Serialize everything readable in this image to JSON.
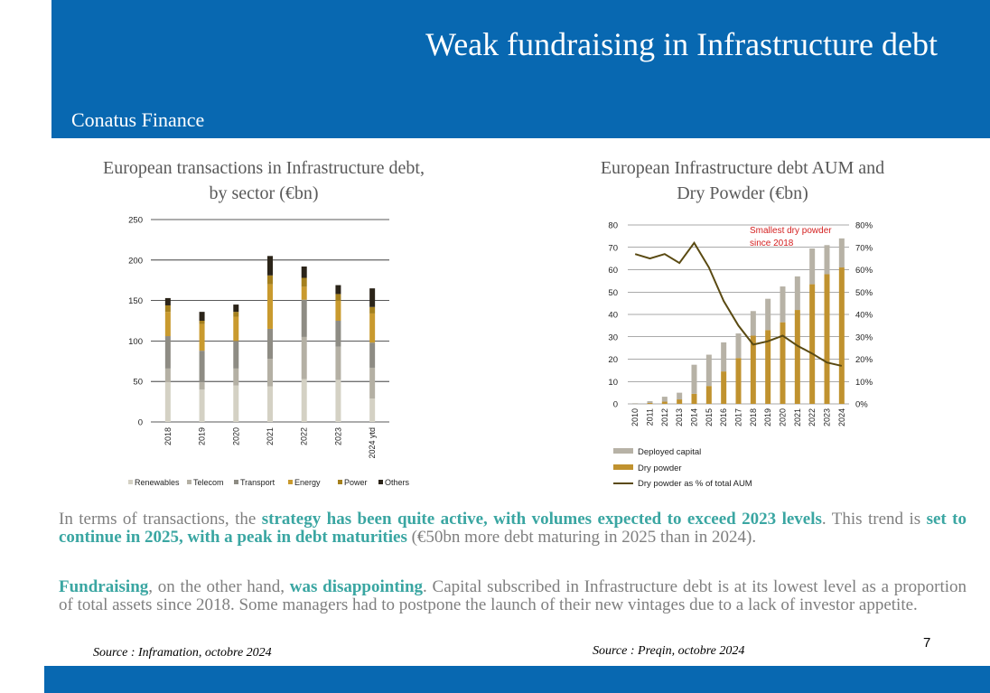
{
  "header": {
    "title": "Weak fundraising in Infrastructure debt",
    "company": "Conatus Finance"
  },
  "colors": {
    "header_bg": "#0868b1",
    "accent_text": "#3aa6a2"
  },
  "chart_data": [
    {
      "type": "bar",
      "stacked": true,
      "title_lines": [
        "European transactions in Infrastructure debt,",
        "by sector (€bn)"
      ],
      "categories": [
        "2018",
        "2019",
        "2020",
        "2021",
        "2022",
        "2023",
        "2024 ytd"
      ],
      "ylim": [
        0,
        250
      ],
      "yticks": [
        0,
        50,
        100,
        150,
        200,
        250
      ],
      "grid": true,
      "legend_position": "bottom",
      "series": [
        {
          "name": "Renewables",
          "color": "#d4d1c4",
          "values": [
            49,
            40,
            45,
            44,
            53,
            52,
            29
          ]
        },
        {
          "name": "Telecom",
          "color": "#b4b0a4",
          "values": [
            17,
            9,
            21,
            34,
            52,
            41,
            38
          ]
        },
        {
          "name": "Transport",
          "color": "#8e8c84",
          "values": [
            40,
            39,
            34,
            37,
            46,
            32,
            31
          ]
        },
        {
          "name": "Energy",
          "color": "#c99a2e",
          "values": [
            30,
            33,
            30,
            55,
            16,
            25,
            36
          ]
        },
        {
          "name": "Power",
          "color": "#a5801d",
          "values": [
            8,
            4,
            6,
            11,
            11,
            8,
            8
          ]
        },
        {
          "name": "Others",
          "color": "#2b2419",
          "values": [
            9,
            11,
            9,
            24,
            14,
            11,
            23
          ]
        }
      ]
    },
    {
      "type": "bar",
      "stacked": true,
      "title_lines": [
        "European Infrastructure debt AUM and",
        "Dry Powder (€bn)"
      ],
      "categories": [
        "2010",
        "2011",
        "2012",
        "2013",
        "2014",
        "2015",
        "2016",
        "2017",
        "2018",
        "2019",
        "2020",
        "2021",
        "2022",
        "2023",
        "2024"
      ],
      "ylim": [
        0,
        80
      ],
      "yticks": [
        0,
        10,
        20,
        30,
        40,
        50,
        60,
        70,
        80
      ],
      "y2lim": [
        0,
        80
      ],
      "y2ticks": [
        "0%",
        "10%",
        "20%",
        "30%",
        "40%",
        "50%",
        "60%",
        "70%",
        "80%"
      ],
      "grid": true,
      "legend_position": "bottom",
      "series": [
        {
          "name": "Deployed capital",
          "color": "#b7b2a6",
          "values": [
            0.3,
            0.8,
            2.2,
            3,
            13,
            14,
            13,
            11,
            11,
            14,
            16,
            15,
            16,
            13,
            13
          ]
        },
        {
          "name": "Dry powder",
          "color": "#c0922f",
          "values": [
            0,
            0.4,
            1,
            2,
            4.5,
            8,
            14.5,
            20.5,
            30.5,
            33,
            36.5,
            42,
            53.5,
            58,
            61
          ]
        }
      ],
      "line_series": {
        "name": "Dry powder as % of total AUM",
        "color": "#5a4a12",
        "axis": "right",
        "values": [
          67,
          65,
          67,
          63,
          72,
          61,
          46,
          35,
          26.5,
          28,
          30.5,
          26,
          22.5,
          18.5,
          17
        ]
      },
      "annotation": {
        "lines": [
          "Smallest dry powder",
          "since 2018"
        ],
        "color": "#d42020"
      }
    }
  ],
  "text": {
    "p1": [
      {
        "t": "In terms of transactions, the ",
        "h": false
      },
      {
        "t": "strategy has been quite active, with volumes expected to exceed 2023 levels",
        "h": true
      },
      {
        "t": ". This trend is ",
        "h": false
      },
      {
        "t": "set to continue in 2025, with a peak in debt maturities",
        "h": true
      },
      {
        "t": " (€50bn more debt maturing in 2025 than in 2024).",
        "h": false
      }
    ],
    "p2": [
      {
        "t": "Fundraising",
        "h": true
      },
      {
        "t": ", on the other hand, ",
        "h": false
      },
      {
        "t": "was disappointing",
        "h": true
      },
      {
        "t": ". Capital subscribed in Infrastructure debt is at its lowest level as a proportion of total assets since 2018. Some managers had to postpone the launch of their new vintages due to a lack of investor appetite.",
        "h": false
      }
    ]
  },
  "sources": {
    "left": "Source : Inframation, octobre 2024",
    "right": "Source : Preqin, octobre 2024"
  },
  "page_number": "7"
}
